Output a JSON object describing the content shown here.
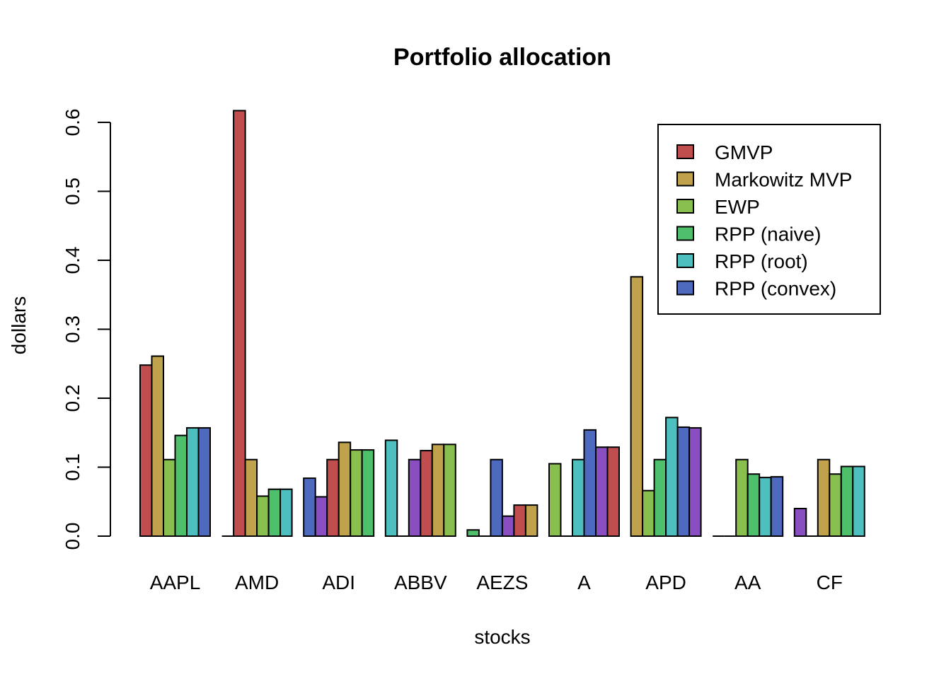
{
  "chart_data": {
    "type": "bar",
    "title": "Portfolio allocation",
    "xlabel": "stocks",
    "ylabel": "dollars",
    "ylim": [
      0,
      0.6
    ],
    "yticks": [
      "0.0",
      "0.1",
      "0.2",
      "0.3",
      "0.4",
      "0.5",
      "0.6"
    ],
    "ytick_values": [
      0,
      0.1,
      0.2,
      0.3,
      0.4,
      0.5,
      0.6
    ],
    "grid": false,
    "legend_position": "top-right",
    "categories": [
      "AAPL",
      "AMD",
      "ADI",
      "ABBV",
      "AEZS",
      "A",
      "APD",
      "AA",
      "CF"
    ],
    "series": [
      {
        "name": "GMVP",
        "values": [
          0.248,
          0.0,
          0.084,
          0.139,
          0.009,
          0.105,
          0.376,
          0.0,
          0.04
        ]
      },
      {
        "name": "Markowitz MVP",
        "values": [
          0.261,
          0.617,
          0.057,
          0.0,
          0.0,
          0.0,
          0.066,
          0.0,
          0.0
        ]
      },
      {
        "name": "EWP",
        "values": [
          0.111,
          0.111,
          0.111,
          0.111,
          0.111,
          0.111,
          0.111,
          0.111,
          0.111
        ]
      },
      {
        "name": "RPP (naive)",
        "values": [
          0.146,
          0.058,
          0.136,
          0.124,
          0.029,
          0.154,
          0.172,
          0.09,
          0.09
        ]
      },
      {
        "name": "RPP (root)",
        "values": [
          0.157,
          0.068,
          0.125,
          0.133,
          0.045,
          0.129,
          0.158,
          0.085,
          0.101
        ]
      },
      {
        "name": "RPP (convex)",
        "values": [
          0.157,
          0.068,
          0.125,
          0.133,
          0.045,
          0.129,
          0.157,
          0.086,
          0.101
        ]
      }
    ],
    "bar_colors_cycle": [
      "#C04E4E",
      "#BFA24B",
      "#89BF4E",
      "#4EBF6A",
      "#4EBFBF",
      "#4E6ABF",
      "#894EBF"
    ],
    "legend_colors": [
      "#C04E4E",
      "#BFA24B",
      "#89BF4E",
      "#4EBF6A",
      "#4EBFBF",
      "#4E6ABF"
    ]
  }
}
